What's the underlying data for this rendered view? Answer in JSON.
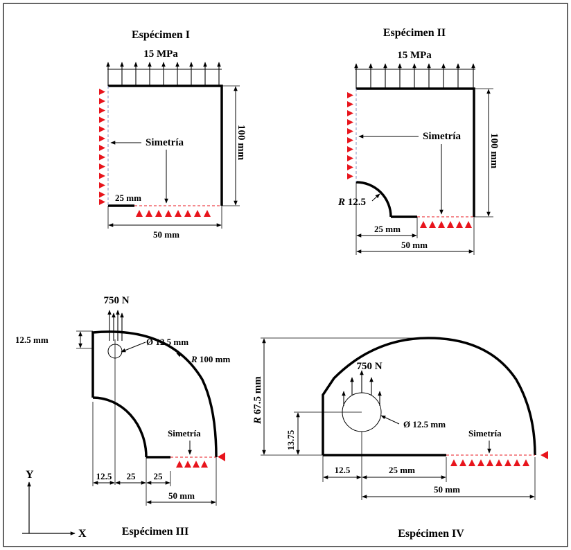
{
  "colors": {
    "support": "#e8141c",
    "line": "#000000",
    "background": "#ffffff"
  },
  "specimen_1": {
    "title": "Espécimen I",
    "load": "15 MPa",
    "symmetry": "Simetría",
    "height": "100 mm",
    "hole_width": "25 mm",
    "width": "50 mm"
  },
  "specimen_2": {
    "title": "Espécimen II",
    "load": "15 MPa",
    "symmetry": "Simetría",
    "height": "100 mm",
    "radius_prefix": "R",
    "radius_value": "12.5",
    "hole_width": "25 mm",
    "width": "50 mm"
  },
  "specimen_3": {
    "title": "Espécimen III",
    "force": "750 N",
    "offset": "12.5 mm",
    "hole_diameter": "Ø 12.5 mm",
    "radius_prefix": "R",
    "radius_value": "100 mm",
    "symmetry": "Simetría",
    "dim_1": "12.5",
    "dim_2": "25",
    "dim_3": "25",
    "width": "50 mm"
  },
  "specimen_4": {
    "title": "Espécimen IV",
    "force": "750 N",
    "radius_prefix": "R",
    "radius_value": "67.5 mm",
    "hole_height": "13.75",
    "hole_diameter": "Ø 12.5 mm",
    "symmetry": "Simetría",
    "dim_1": "12.5",
    "dim_2": "25 mm",
    "width": "50 mm"
  },
  "axes": {
    "x_label": "X",
    "y_label": "Y"
  }
}
